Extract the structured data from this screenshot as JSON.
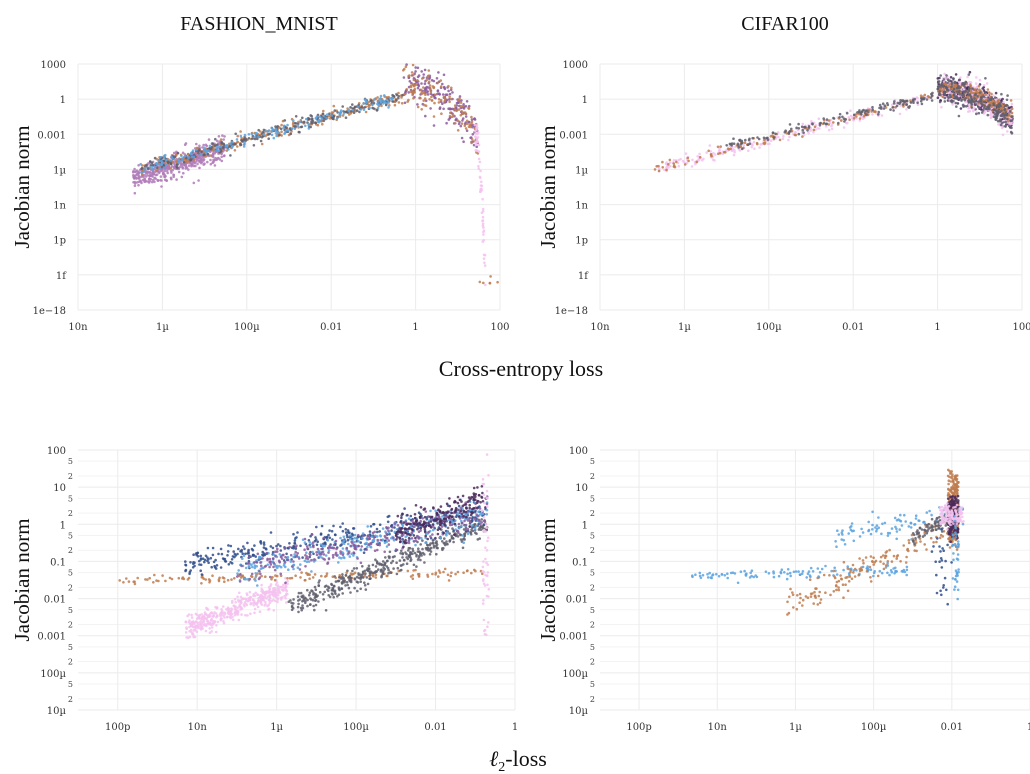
{
  "figure": {
    "xlabel_top": "Cross-entropy loss",
    "xlabel_bottom_prefix": "ℓ",
    "xlabel_bottom_sub": "2",
    "xlabel_bottom_suffix": "-loss"
  },
  "palette": [
    "#b07bb8",
    "#8b5a9e",
    "#c07d4f",
    "#5aa3e0",
    "#5f5f6f",
    "#2f4e8c",
    "#f4c2f0",
    "#4a2a5a"
  ],
  "chart_data": [
    {
      "type": "scatter",
      "title": "FASHION_MNIST",
      "xlabel": "",
      "ylabel": "Jacobian norm",
      "x_scale": "log",
      "y_scale": "log",
      "xlim": [
        1e-08,
        100
      ],
      "ylim": [
        1e-18,
        1000
      ],
      "x_ticks": [
        {
          "value": 1e-08,
          "label": "10n"
        },
        {
          "value": 1e-06,
          "label": "1µ"
        },
        {
          "value": 0.0001,
          "label": "100µ"
        },
        {
          "value": 0.01,
          "label": "0.01"
        },
        {
          "value": 1,
          "label": "1"
        },
        {
          "value": 100,
          "label": "100"
        }
      ],
      "y_ticks": [
        {
          "value": 1000,
          "label": "1000"
        },
        {
          "value": 1,
          "label": "1"
        },
        {
          "value": 0.001,
          "label": "0.001"
        },
        {
          "value": 1e-06,
          "label": "1µ"
        },
        {
          "value": 1e-09,
          "label": "1n"
        },
        {
          "value": 1e-12,
          "label": "1p"
        },
        {
          "value": 1e-15,
          "label": "1f"
        },
        {
          "value": 1e-18,
          "label": "1e−18"
        }
      ],
      "grid": true,
      "clusters": [
        {
          "x": [
            2e-07,
            3e-05
          ],
          "y": [
            2e-07,
            6e-05
          ],
          "slope": 1.0,
          "spread": 0.5,
          "color": 0,
          "n": 460
        },
        {
          "x": [
            3e-07,
            0.5
          ],
          "y": [
            1e-06,
            2
          ],
          "slope": 0.85,
          "spread": 0.3,
          "color": 2,
          "n": 260
        },
        {
          "x": [
            3e-07,
            0.5
          ],
          "y": [
            1e-06,
            2
          ],
          "slope": 0.85,
          "spread": 0.25,
          "color": 4,
          "n": 260
        },
        {
          "x": [
            3e-07,
            0.5
          ],
          "y": [
            1e-06,
            2
          ],
          "slope": 0.85,
          "spread": 0.25,
          "color": 3,
          "n": 160
        },
        {
          "x": [
            0.5,
            30
          ],
          "y": [
            0.001,
            20
          ],
          "slope": -1.5,
          "spread": 0.9,
          "color": 1,
          "n": 200
        },
        {
          "x": [
            0.5,
            30
          ],
          "y": [
            0.001,
            20
          ],
          "slope": -1.5,
          "spread": 0.9,
          "color": 2,
          "n": 120
        },
        {
          "x": [
            25,
            45
          ],
          "y": [
            1e-15,
            0.001
          ],
          "slope": -6,
          "spread": 0.8,
          "color": 6,
          "n": 60
        },
        {
          "x": [
            30,
            90
          ],
          "y": [
            1e-18,
            1e-15
          ],
          "slope": 0,
          "spread": 0.4,
          "color": 2,
          "n": 6
        }
      ]
    },
    {
      "type": "scatter",
      "title": "CIFAR100",
      "xlabel": "",
      "ylabel": "Jacobian norm",
      "x_scale": "log",
      "y_scale": "log",
      "xlim": [
        1e-08,
        100
      ],
      "ylim": [
        1e-18,
        1000
      ],
      "x_ticks": [
        {
          "value": 1e-08,
          "label": "10n"
        },
        {
          "value": 1e-06,
          "label": "1µ"
        },
        {
          "value": 0.0001,
          "label": "100µ"
        },
        {
          "value": 0.01,
          "label": "0.01"
        },
        {
          "value": 1,
          "label": "1"
        },
        {
          "value": 100,
          "label": "100"
        }
      ],
      "y_ticks": [
        {
          "value": 1000,
          "label": "1000"
        },
        {
          "value": 1,
          "label": "1"
        },
        {
          "value": 0.001,
          "label": "0.001"
        },
        {
          "value": 1e-06,
          "label": "1µ"
        },
        {
          "value": 1e-09,
          "label": "1n"
        },
        {
          "value": 1e-12,
          "label": "1p"
        },
        {
          "value": 1e-15,
          "label": "1f"
        },
        {
          "value": 1e-18,
          "label": "1e−18"
        }
      ],
      "grid": true,
      "clusters": [
        {
          "x": [
            2e-07,
            0.8
          ],
          "y": [
            1e-06,
            2
          ],
          "slope": 0.78,
          "spread": 0.25,
          "color": 6,
          "n": 220
        },
        {
          "x": [
            2e-07,
            0.8
          ],
          "y": [
            1e-06,
            2
          ],
          "slope": 0.78,
          "spread": 0.2,
          "color": 2,
          "n": 120
        },
        {
          "x": [
            1e-05,
            0.8
          ],
          "y": [
            0.0001,
            2
          ],
          "slope": 0.78,
          "spread": 0.2,
          "color": 4,
          "n": 140
        },
        {
          "x": [
            1,
            60
          ],
          "y": [
            0.02,
            8
          ],
          "slope": -0.5,
          "spread": 0.5,
          "color": 7,
          "n": 420
        },
        {
          "x": [
            1,
            60
          ],
          "y": [
            0.01,
            8
          ],
          "slope": -0.5,
          "spread": 0.6,
          "color": 6,
          "n": 320
        },
        {
          "x": [
            1,
            60
          ],
          "y": [
            0.05,
            8
          ],
          "slope": -0.3,
          "spread": 0.4,
          "color": 2,
          "n": 200
        },
        {
          "x": [
            1,
            60
          ],
          "y": [
            0.01,
            5
          ],
          "slope": -0.5,
          "spread": 0.6,
          "color": 4,
          "n": 220
        }
      ]
    },
    {
      "type": "scatter",
      "title": "",
      "xlabel": "",
      "ylabel": "Jacobian norm",
      "x_scale": "log",
      "y_scale": "log",
      "xlim": [
        1e-11,
        1
      ],
      "ylim": [
        1e-05,
        100
      ],
      "x_ticks": [
        {
          "value": 1e-10,
          "label": "100p"
        },
        {
          "value": 1e-08,
          "label": "10n"
        },
        {
          "value": 1e-06,
          "label": "1µ"
        },
        {
          "value": 0.0001,
          "label": "100µ"
        },
        {
          "value": 0.01,
          "label": "0.01"
        },
        {
          "value": 1,
          "label": "1"
        }
      ],
      "y_ticks": [
        {
          "value": 100,
          "label": "100"
        },
        {
          "value": 10,
          "label": "10"
        },
        {
          "value": 1,
          "label": "1"
        },
        {
          "value": 0.1,
          "label": "0.1"
        },
        {
          "value": 0.01,
          "label": "0.01"
        },
        {
          "value": 0.001,
          "label": "0.001"
        },
        {
          "value": 0.0001,
          "label": "100µ"
        },
        {
          "value": 1e-05,
          "label": "10µ"
        }
      ],
      "y_minor_labels": [
        "5",
        "2"
      ],
      "grid": true,
      "clusters": [
        {
          "x": [
            5e-09,
            2e-06
          ],
          "y": [
            0.0015,
            0.02
          ],
          "slope": 0.35,
          "spread": 0.15,
          "color": 6,
          "n": 420
        },
        {
          "x": [
            1e-10,
            0.2
          ],
          "y": [
            0.03,
            0.05
          ],
          "slope": 0.02,
          "spread": 0.06,
          "color": 2,
          "n": 150
        },
        {
          "x": [
            2e-06,
            0.2
          ],
          "y": [
            0.006,
            1
          ],
          "slope": 0.35,
          "spread": 0.15,
          "color": 4,
          "n": 420
        },
        {
          "x": [
            5e-09,
            0.2
          ],
          "y": [
            0.08,
            2
          ],
          "slope": 0.2,
          "spread": 0.18,
          "color": 5,
          "n": 380
        },
        {
          "x": [
            1e-07,
            0.2
          ],
          "y": [
            0.05,
            2
          ],
          "slope": 0.22,
          "spread": 0.2,
          "color": 3,
          "n": 300
        },
        {
          "x": [
            1e-07,
            0.2
          ],
          "y": [
            0.05,
            2
          ],
          "slope": 0.2,
          "spread": 0.2,
          "color": 1,
          "n": 250
        },
        {
          "x": [
            0.001,
            0.2
          ],
          "y": [
            0.5,
            5
          ],
          "slope": 0.15,
          "spread": 0.2,
          "color": 7,
          "n": 200
        },
        {
          "x": [
            0.15,
            0.22
          ],
          "y": [
            0.001,
            30
          ],
          "slope": 0,
          "spread": 0.9,
          "color": 6,
          "n": 50
        }
      ]
    },
    {
      "type": "scatter",
      "title": "",
      "xlabel": "",
      "ylabel": "Jacobian norm",
      "x_scale": "log",
      "y_scale": "log",
      "xlim": [
        1e-11,
        1
      ],
      "ylim": [
        1e-05,
        100
      ],
      "x_ticks": [
        {
          "value": 1e-10,
          "label": "100p"
        },
        {
          "value": 1e-08,
          "label": "10n"
        },
        {
          "value": 1e-06,
          "label": "1µ"
        },
        {
          "value": 0.0001,
          "label": "100µ"
        },
        {
          "value": 0.01,
          "label": "0.01"
        },
        {
          "value": 1,
          "label": "1"
        }
      ],
      "y_ticks": [
        {
          "value": 100,
          "label": "100"
        },
        {
          "value": 10,
          "label": "10"
        },
        {
          "value": 1,
          "label": "1"
        },
        {
          "value": 0.1,
          "label": "0.1"
        },
        {
          "value": 0.01,
          "label": "0.01"
        },
        {
          "value": 0.001,
          "label": "0.001"
        },
        {
          "value": 0.0001,
          "label": "100µ"
        },
        {
          "value": 1e-05,
          "label": "10µ"
        }
      ],
      "y_minor_labels": [
        "5",
        "2"
      ],
      "grid": true,
      "clusters": [
        {
          "x": [
            2e-09,
            0.001
          ],
          "y": [
            0.04,
            0.06
          ],
          "slope": 0.02,
          "spread": 0.07,
          "color": 3,
          "n": 120
        },
        {
          "x": [
            5e-07,
            0.012
          ],
          "y": [
            0.006,
            1
          ],
          "slope": 0.35,
          "spread": 0.2,
          "color": 2,
          "n": 160
        },
        {
          "x": [
            1e-05,
            0.02
          ],
          "y": [
            0.5,
            2
          ],
          "slope": 0.05,
          "spread": 0.15,
          "color": 3,
          "n": 90
        },
        {
          "x": [
            0.001,
            0.015
          ],
          "y": [
            0.5,
            2
          ],
          "slope": 0.05,
          "spread": 0.1,
          "color": 4,
          "n": 100
        },
        {
          "x": [
            0.008,
            0.015
          ],
          "y": [
            0.3,
            20
          ],
          "slope": 0,
          "spread": 0.4,
          "color": 2,
          "n": 250
        },
        {
          "x": [
            0.008,
            0.015
          ],
          "y": [
            0.5,
            5
          ],
          "slope": 0,
          "spread": 0.25,
          "color": 7,
          "n": 160
        },
        {
          "x": [
            0.005,
            0.02
          ],
          "y": [
            1,
            3
          ],
          "slope": 0,
          "spread": 0.15,
          "color": 6,
          "n": 120
        },
        {
          "x": [
            0.01,
            0.015
          ],
          "y": [
            0.01,
            1
          ],
          "slope": 0,
          "spread": 0.6,
          "color": 3,
          "n": 40
        },
        {
          "x": [
            0.003,
            0.01
          ],
          "y": [
            0.01,
            0.5
          ],
          "slope": 0,
          "spread": 0.4,
          "color": 5,
          "n": 25
        }
      ]
    }
  ]
}
